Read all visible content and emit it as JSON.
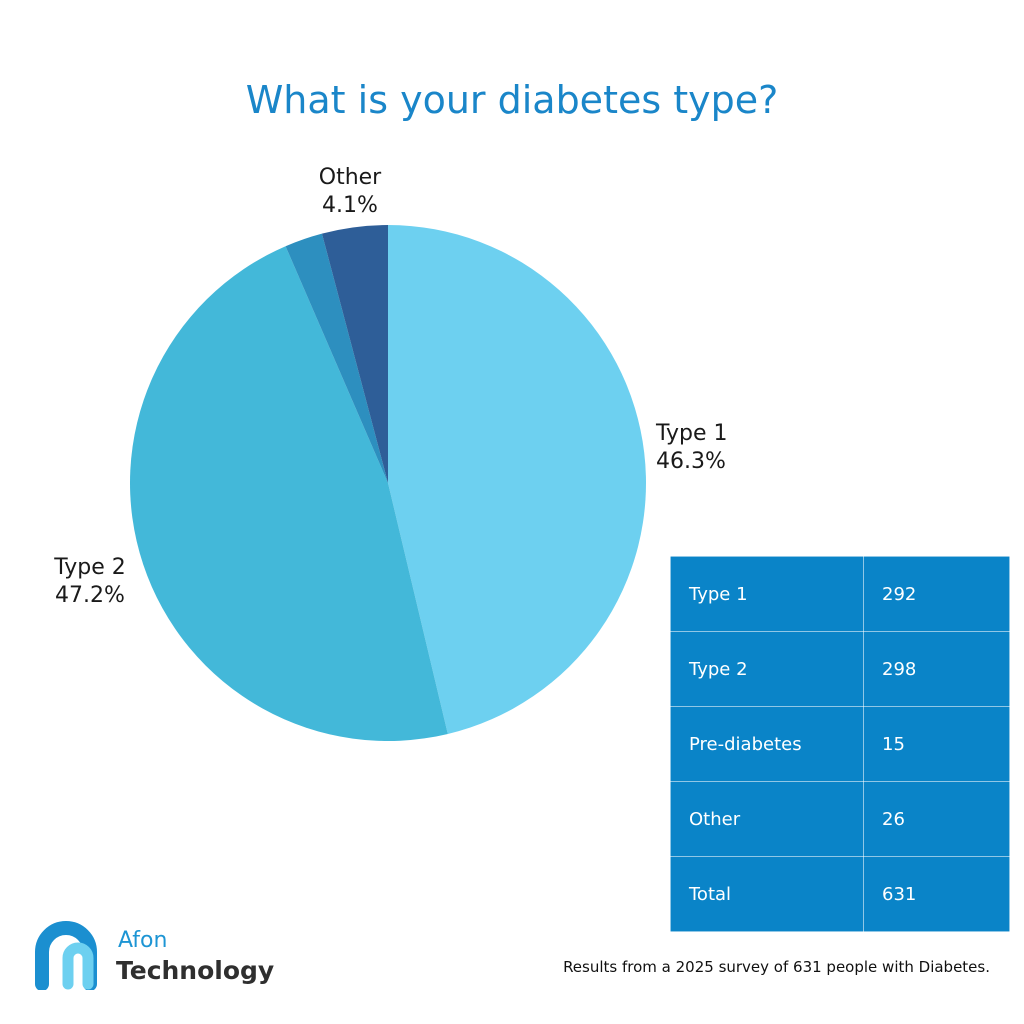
{
  "chart_data": {
    "type": "pie",
    "title": "What is your diabetes type?",
    "slices": [
      {
        "name": "Type 1",
        "value": 292,
        "percent_label": "46.3%",
        "color": "#6dd0f0",
        "show_label": true
      },
      {
        "name": "Type 2",
        "value": 298,
        "percent_label": "47.2%",
        "color": "#43b8d9",
        "show_label": true
      },
      {
        "name": "Pre-diabetes",
        "value": 15,
        "percent_label": "",
        "color": "#2d8fbf",
        "show_label": false
      },
      {
        "name": "Other",
        "value": 26,
        "percent_label": "4.1%",
        "color": "#2e5e98",
        "show_label": true
      }
    ],
    "direction": "clockwise",
    "start_angle": "top"
  },
  "table": {
    "rows": [
      {
        "label": "Type 1",
        "value": "292"
      },
      {
        "label": "Type 2",
        "value": "298"
      },
      {
        "label": "Pre-diabetes",
        "value": "15"
      },
      {
        "label": "Other",
        "value": "26"
      },
      {
        "label": "Total",
        "value": "631"
      }
    ],
    "background": "#0a84c8"
  },
  "logo": {
    "line1": "Afon",
    "line2": "Technology",
    "mark_icon": "afon-a-logo-icon"
  },
  "footnote": "Results from a 2025 survey of 631 people with Diabetes."
}
